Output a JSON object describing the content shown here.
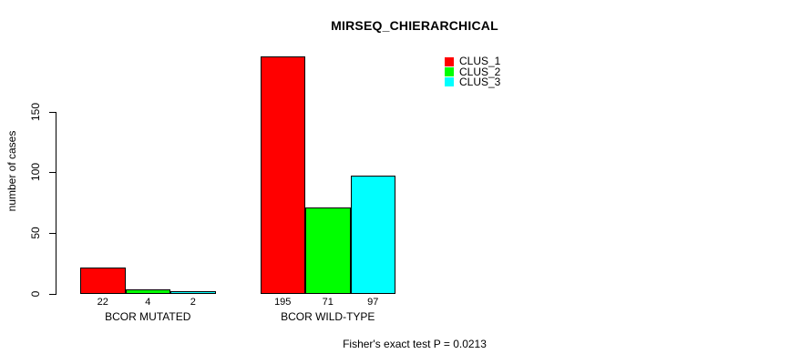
{
  "page": {
    "background_color": "#ffffff",
    "text_color": "#000000"
  },
  "chart_data": {
    "type": "bar",
    "title": "MIRSEQ_CHIERARCHICAL",
    "ylabel": "number of cases",
    "xlabel": "",
    "categories": [
      "BCOR MUTATED",
      "BCOR WILD-TYPE"
    ],
    "series": [
      {
        "name": "CLUS_1",
        "color": "#ff0000",
        "values": [
          22,
          195
        ]
      },
      {
        "name": "CLUS_2",
        "color": "#00ff00",
        "values": [
          4,
          71
        ]
      },
      {
        "name": "CLUS_3",
        "color": "#00ffff",
        "values": [
          2,
          97
        ]
      }
    ],
    "bar_value_labels": [
      [
        "22",
        "4",
        "2"
      ],
      [
        "195",
        "71",
        "97"
      ]
    ],
    "yticks": [
      0,
      50,
      100,
      150
    ],
    "ylim": [
      0,
      150
    ],
    "grid": false,
    "legend_position": "inside-top-right",
    "legend_entries": [
      "CLUS_1",
      "CLUS_2",
      "CLUS_3"
    ],
    "annotation": "Fisher's exact test P = 0.0213",
    "bar_border_color": "#000000",
    "axis_color": "#000000"
  }
}
